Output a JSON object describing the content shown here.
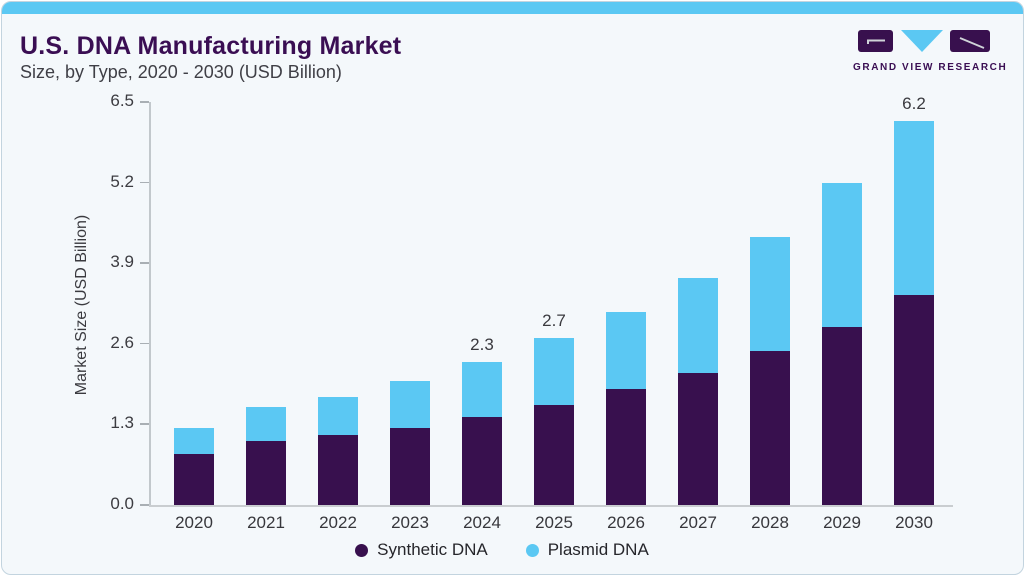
{
  "header": {
    "title": "U.S. DNA Manufacturing Market",
    "subtitle": "Size, by Type, 2020 - 2030 (USD Billion)"
  },
  "logo": {
    "text": "GRAND VIEW RESEARCH",
    "purple": "#38104E",
    "blue": "#5BC8F3"
  },
  "chart_data": {
    "type": "bar",
    "stacked": true,
    "title": "U.S. DNA Manufacturing Market Size, by Type, 2020 - 2030 (USD Billion)",
    "ylabel": "Market Size (USD Billion)",
    "xlabel": "",
    "ylim": [
      0,
      6.5
    ],
    "ytick_values": [
      0,
      1.3,
      2.6,
      3.9,
      5.2,
      6.5
    ],
    "ytick_labels": [
      "0.0",
      "1.3",
      "2.6",
      "3.9",
      "5.2",
      "6.5"
    ],
    "grid": false,
    "legend_position": "bottom",
    "categories": [
      "2020",
      "2021",
      "2022",
      "2023",
      "2024",
      "2025",
      "2026",
      "2027",
      "2028",
      "2029",
      "2030"
    ],
    "series": [
      {
        "name": "Synthetic DNA",
        "color": "#38104E",
        "values": [
          0.83,
          1.03,
          1.13,
          1.25,
          1.42,
          1.62,
          1.87,
          2.13,
          2.48,
          2.87,
          3.38
        ]
      },
      {
        "name": "Plasmid DNA",
        "color": "#5BC8F3",
        "values": [
          0.42,
          0.55,
          0.62,
          0.75,
          0.88,
          1.08,
          1.24,
          1.53,
          1.84,
          2.33,
          2.82
        ]
      }
    ],
    "total_labels": [
      "",
      "",
      "",
      "",
      "2.3",
      "2.7",
      "",
      "",
      "",
      "",
      "6.2"
    ]
  }
}
